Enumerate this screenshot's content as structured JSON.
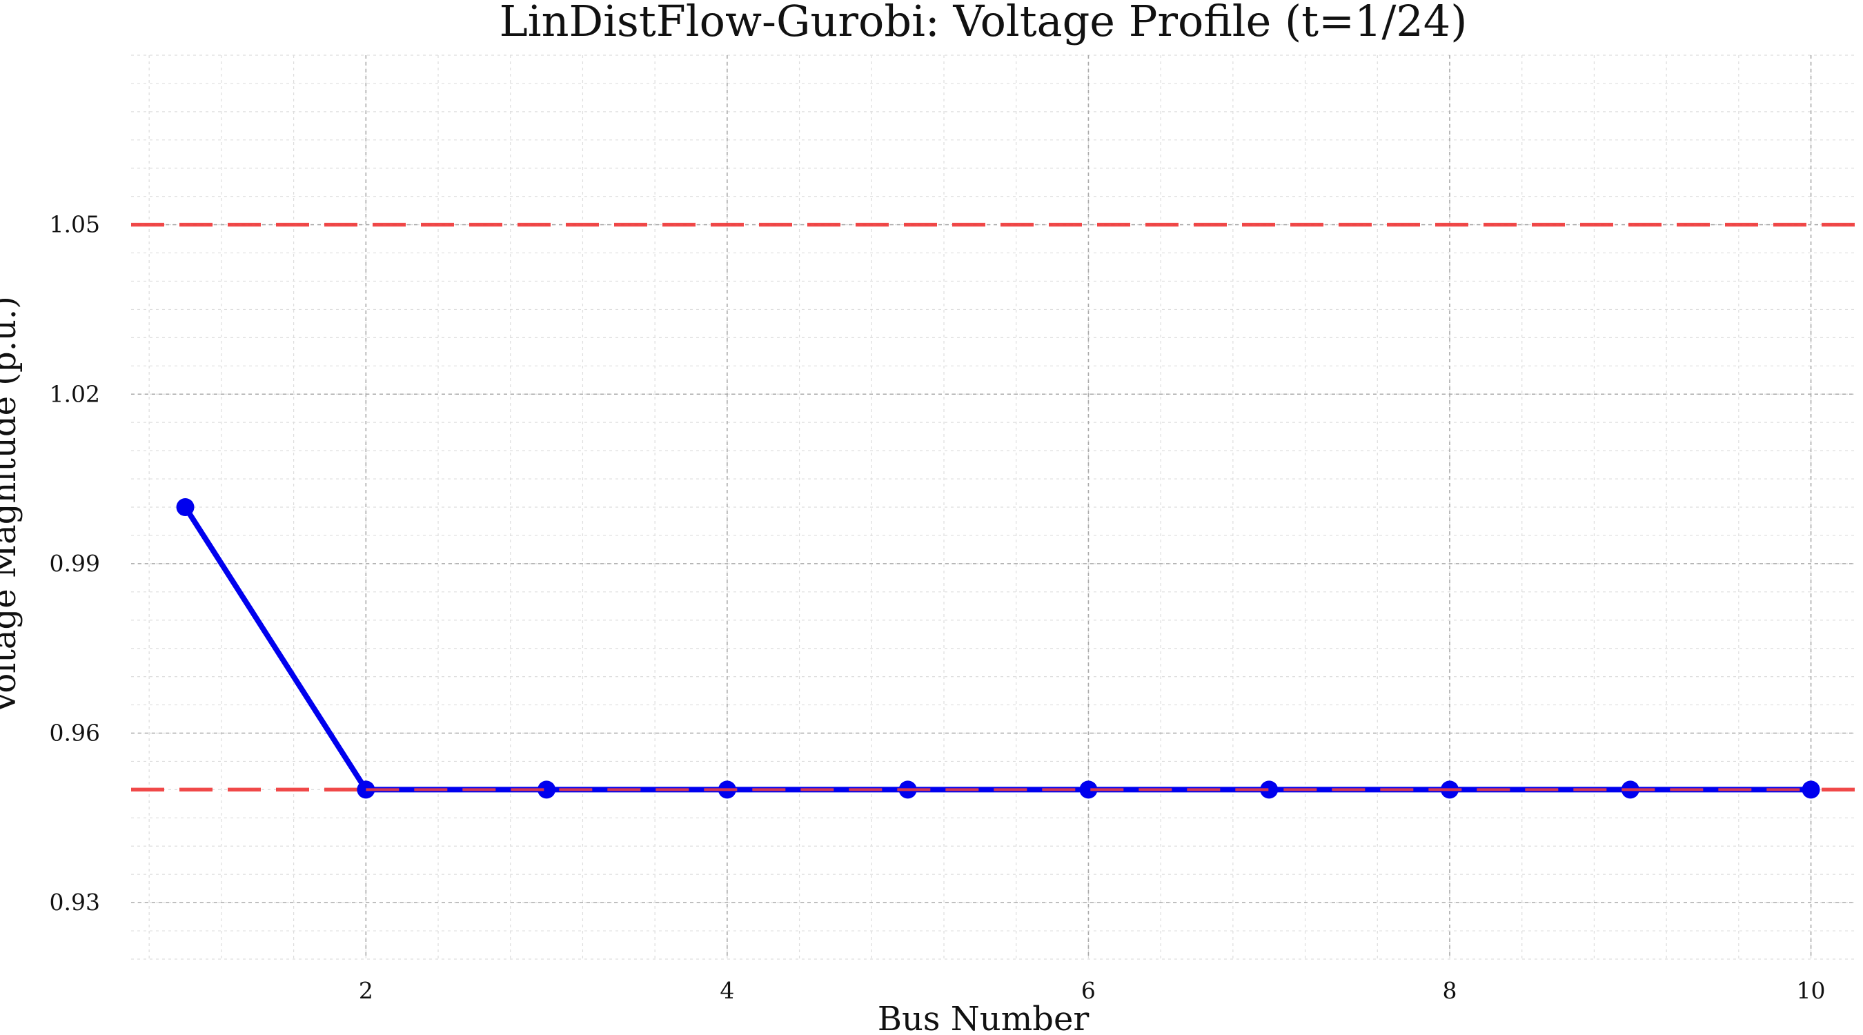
{
  "chart_data": {
    "type": "line",
    "title": "LinDistFlow-Gurobi: Voltage Profile (t=1/24)",
    "xlabel": "Bus Number",
    "ylabel": "Voltage Magnitude (p.u.)",
    "xlim": [
      0.7,
      10.25
    ],
    "ylim": [
      0.92,
      1.08
    ],
    "x_ticks": [
      2,
      4,
      6,
      8,
      10
    ],
    "x_tick_labels": [
      "2",
      "4",
      "6",
      "8",
      "10"
    ],
    "y_ticks": [
      0.93,
      0.96,
      0.99,
      1.02,
      1.05
    ],
    "y_tick_labels": [
      "0.93",
      "0.96",
      "0.99",
      "1.02",
      "1.05"
    ],
    "grid": true,
    "minor_grid": true,
    "series": [
      {
        "color": "#0000ee",
        "marker": "circle",
        "x": [
          1,
          2,
          3,
          4,
          5,
          6,
          7,
          8,
          9,
          10
        ],
        "y": [
          1.0,
          0.95,
          0.95,
          0.95,
          0.95,
          0.95,
          0.95,
          0.95,
          0.95,
          0.95
        ]
      }
    ],
    "reference_lines": [
      {
        "y": 1.05,
        "color": "#f04040",
        "style": "dashed"
      },
      {
        "y": 0.95,
        "color": "#f04040",
        "style": "dashed"
      }
    ]
  }
}
